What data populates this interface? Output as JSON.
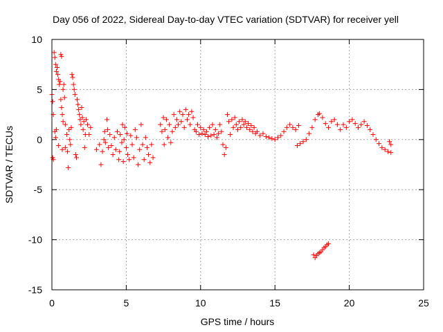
{
  "chart_data": {
    "type": "scatter",
    "title": "Day 056 of 2022, Sidereal Day-to-day VTEC variation (SDTVAR) for receiver yell",
    "xlabel": "GPS time / hours",
    "ylabel": "SDTVAR / TECUs",
    "xlim": [
      0,
      25
    ],
    "ylim": [
      -15,
      10
    ],
    "xticks": [
      0,
      5,
      10,
      15,
      20,
      25
    ],
    "yticks": [
      -15,
      -10,
      -5,
      0,
      5,
      10
    ],
    "xtick_labels": [
      "0",
      "5",
      "10",
      "15",
      "20",
      "25"
    ],
    "ytick_labels": [
      "-15",
      "-10",
      "-5",
      "0",
      "5",
      "10"
    ],
    "grid": true,
    "marker": "plus",
    "color": "#ff0000",
    "series": [
      {
        "name": "SDTVAR",
        "points": [
          [
            0.0,
            4.5
          ],
          [
            0.05,
            3.8
          ],
          [
            0.05,
            -1.8
          ],
          [
            0.1,
            -2.0
          ],
          [
            0.1,
            2.5
          ],
          [
            0.15,
            8.7
          ],
          [
            0.2,
            8.2
          ],
          [
            0.2,
            0.8
          ],
          [
            0.25,
            7.5
          ],
          [
            0.25,
            0.2
          ],
          [
            0.3,
            6.8
          ],
          [
            0.3,
            1.0
          ],
          [
            0.35,
            7.2
          ],
          [
            0.4,
            6.5
          ],
          [
            0.45,
            6.0
          ],
          [
            0.45,
            -0.6
          ],
          [
            0.5,
            5.5
          ],
          [
            0.55,
            5.8
          ],
          [
            0.6,
            8.5
          ],
          [
            0.65,
            8.3
          ],
          [
            0.6,
            4.0
          ],
          [
            0.65,
            3.2
          ],
          [
            0.7,
            2.5
          ],
          [
            0.7,
            -1.0
          ],
          [
            0.75,
            1.8
          ],
          [
            0.75,
            5.0
          ],
          [
            0.8,
            5.5
          ],
          [
            0.85,
            4.2
          ],
          [
            0.9,
            1.5
          ],
          [
            0.9,
            -0.8
          ],
          [
            1.0,
            0.5
          ],
          [
            1.05,
            -1.2
          ],
          [
            1.1,
            -2.8
          ],
          [
            1.15,
            1.0
          ],
          [
            1.2,
            0.0
          ],
          [
            1.25,
            -0.5
          ],
          [
            1.3,
            1.2
          ],
          [
            1.35,
            6.5
          ],
          [
            1.4,
            6.2
          ],
          [
            1.45,
            5.5
          ],
          [
            1.5,
            5.0
          ],
          [
            1.55,
            4.5
          ],
          [
            1.6,
            -1.5
          ],
          [
            1.65,
            -1.8
          ],
          [
            1.7,
            4.0
          ],
          [
            1.75,
            3.5
          ],
          [
            1.8,
            3.0
          ],
          [
            1.85,
            2.5
          ],
          [
            1.9,
            2.0
          ],
          [
            1.95,
            1.5
          ],
          [
            2.0,
            3.2
          ],
          [
            2.05,
            2.2
          ],
          [
            2.1,
            1.0
          ],
          [
            2.15,
            1.8
          ],
          [
            2.2,
            -0.8
          ],
          [
            2.25,
            0.5
          ],
          [
            2.3,
            2.0
          ],
          [
            2.4,
            1.5
          ],
          [
            2.5,
            0.5
          ],
          [
            2.6,
            1.2
          ],
          [
            3.0,
            -1.0
          ],
          [
            3.2,
            -0.5
          ],
          [
            3.3,
            -2.5
          ],
          [
            3.4,
            -1.2
          ],
          [
            3.5,
            0.0
          ],
          [
            3.55,
            0.8
          ],
          [
            3.6,
            -0.3
          ],
          [
            3.7,
            2.0
          ],
          [
            3.75,
            1.0
          ],
          [
            3.8,
            -0.8
          ],
          [
            3.9,
            0.5
          ],
          [
            4.0,
            -0.6
          ],
          [
            4.1,
            -1.5
          ],
          [
            4.2,
            0.2
          ],
          [
            4.3,
            -1.0
          ],
          [
            4.4,
            0.8
          ],
          [
            4.5,
            -2.0
          ],
          [
            4.55,
            -1.2
          ],
          [
            4.6,
            0.5
          ],
          [
            4.7,
            -0.3
          ],
          [
            4.75,
            1.5
          ],
          [
            4.8,
            -2.2
          ],
          [
            4.85,
            0.0
          ],
          [
            4.9,
            1.2
          ],
          [
            5.0,
            -0.8
          ],
          [
            5.05,
            0.6
          ],
          [
            5.1,
            -1.5
          ],
          [
            5.2,
            -2.0
          ],
          [
            5.3,
            0.4
          ],
          [
            5.4,
            -0.5
          ],
          [
            5.5,
            -1.8
          ],
          [
            5.6,
            1.0
          ],
          [
            5.7,
            0.2
          ],
          [
            5.8,
            -2.5
          ],
          [
            5.9,
            -1.0
          ],
          [
            6.0,
            1.5
          ],
          [
            6.1,
            -0.5
          ],
          [
            6.2,
            -2.0
          ],
          [
            6.3,
            0.2
          ],
          [
            6.4,
            -0.8
          ],
          [
            6.5,
            -1.5
          ],
          [
            6.6,
            -2.3
          ],
          [
            6.7,
            -0.5
          ],
          [
            6.8,
            -1.8
          ],
          [
            7.3,
            1.5
          ],
          [
            7.4,
            0.8
          ],
          [
            7.5,
            2.2
          ],
          [
            7.55,
            -0.5
          ],
          [
            7.6,
            1.0
          ],
          [
            7.7,
            2.0
          ],
          [
            7.8,
            0.2
          ],
          [
            7.9,
            1.5
          ],
          [
            8.0,
            -0.3
          ],
          [
            8.1,
            0.8
          ],
          [
            8.2,
            2.5
          ],
          [
            8.3,
            1.2
          ],
          [
            8.4,
            2.0
          ],
          [
            8.5,
            1.5
          ],
          [
            8.6,
            2.8
          ],
          [
            8.7,
            1.8
          ],
          [
            8.8,
            2.5
          ],
          [
            8.9,
            1.2
          ],
          [
            9.0,
            3.0
          ],
          [
            9.1,
            2.0
          ],
          [
            9.2,
            2.5
          ],
          [
            9.3,
            1.5
          ],
          [
            9.4,
            2.8
          ],
          [
            9.5,
            2.2
          ],
          [
            9.6,
            1.0
          ],
          [
            9.7,
            0.8
          ],
          [
            9.8,
            1.5
          ],
          [
            9.9,
            0.5
          ],
          [
            10.0,
            1.2
          ],
          [
            10.1,
            0.6
          ],
          [
            10.2,
            1.0
          ],
          [
            10.3,
            0.5
          ],
          [
            10.4,
            0.8
          ],
          [
            10.5,
            0.3
          ],
          [
            10.6,
            1.2
          ],
          [
            10.7,
            0.4
          ],
          [
            10.8,
            1.5
          ],
          [
            10.9,
            0.5
          ],
          [
            11.0,
            1.0
          ],
          [
            11.1,
            0.2
          ],
          [
            11.2,
            0.6
          ],
          [
            11.3,
            1.5
          ],
          [
            11.4,
            0.8
          ],
          [
            11.5,
            -0.5
          ],
          [
            11.6,
            -1.5
          ],
          [
            11.7,
            -0.8
          ],
          [
            11.8,
            2.5
          ],
          [
            11.9,
            1.8
          ],
          [
            12.0,
            0.5
          ],
          [
            12.1,
            2.0
          ],
          [
            12.2,
            1.2
          ],
          [
            12.3,
            2.2
          ],
          [
            12.4,
            1.5
          ],
          [
            12.5,
            1.0
          ],
          [
            12.6,
            1.8
          ],
          [
            12.7,
            1.2
          ],
          [
            12.8,
            2.0
          ],
          [
            12.9,
            1.5
          ],
          [
            13.0,
            1.8
          ],
          [
            13.1,
            1.2
          ],
          [
            13.2,
            1.6
          ],
          [
            13.3,
            1.0
          ],
          [
            13.4,
            1.4
          ],
          [
            13.5,
            0.8
          ],
          [
            13.6,
            1.2
          ],
          [
            13.7,
            0.6
          ],
          [
            13.8,
            0.8
          ],
          [
            14.0,
            0.4
          ],
          [
            14.2,
            0.6
          ],
          [
            14.4,
            0.3
          ],
          [
            14.6,
            0.2
          ],
          [
            14.8,
            0.1
          ],
          [
            15.0,
            0.0
          ],
          [
            15.2,
            0.2
          ],
          [
            15.4,
            0.4
          ],
          [
            15.6,
            0.8
          ],
          [
            15.8,
            1.2
          ],
          [
            16.0,
            1.5
          ],
          [
            16.2,
            1.2
          ],
          [
            16.4,
            1.0
          ],
          [
            16.6,
            1.4
          ],
          [
            16.5,
            -0.6
          ],
          [
            16.7,
            -0.4
          ],
          [
            16.9,
            -0.2
          ],
          [
            17.1,
            0.0
          ],
          [
            17.3,
            0.6
          ],
          [
            17.5,
            1.2
          ],
          [
            17.7,
            2.0
          ],
          [
            17.9,
            2.5
          ],
          [
            18.0,
            2.6
          ],
          [
            18.2,
            2.2
          ],
          [
            18.4,
            1.6
          ],
          [
            18.6,
            1.2
          ],
          [
            18.8,
            1.8
          ],
          [
            19.0,
            2.0
          ],
          [
            19.2,
            1.5
          ],
          [
            19.4,
            1.0
          ],
          [
            19.6,
            1.5
          ],
          [
            19.8,
            1.2
          ],
          [
            20.0,
            1.8
          ],
          [
            20.2,
            2.0
          ],
          [
            20.4,
            1.6
          ],
          [
            20.6,
            1.2
          ],
          [
            20.8,
            1.5
          ],
          [
            21.0,
            1.8
          ],
          [
            21.2,
            1.4
          ],
          [
            21.4,
            1.0
          ],
          [
            21.6,
            0.5
          ],
          [
            21.8,
            0.0
          ],
          [
            22.0,
            -0.4
          ],
          [
            22.2,
            -0.8
          ],
          [
            22.4,
            -1.0
          ],
          [
            22.6,
            -1.2
          ],
          [
            22.8,
            -1.3
          ],
          [
            22.8,
            -0.5
          ],
          [
            22.7,
            -0.2
          ],
          [
            17.6,
            -11.5
          ],
          [
            17.7,
            -11.8
          ],
          [
            17.8,
            -11.6
          ],
          [
            17.9,
            -11.4
          ],
          [
            18.0,
            -11.3
          ],
          [
            18.1,
            -11.2
          ],
          [
            18.2,
            -11.0
          ],
          [
            18.3,
            -10.8
          ],
          [
            18.4,
            -10.7
          ],
          [
            18.5,
            -10.5
          ],
          [
            18.6,
            -10.4
          ]
        ]
      }
    ]
  }
}
